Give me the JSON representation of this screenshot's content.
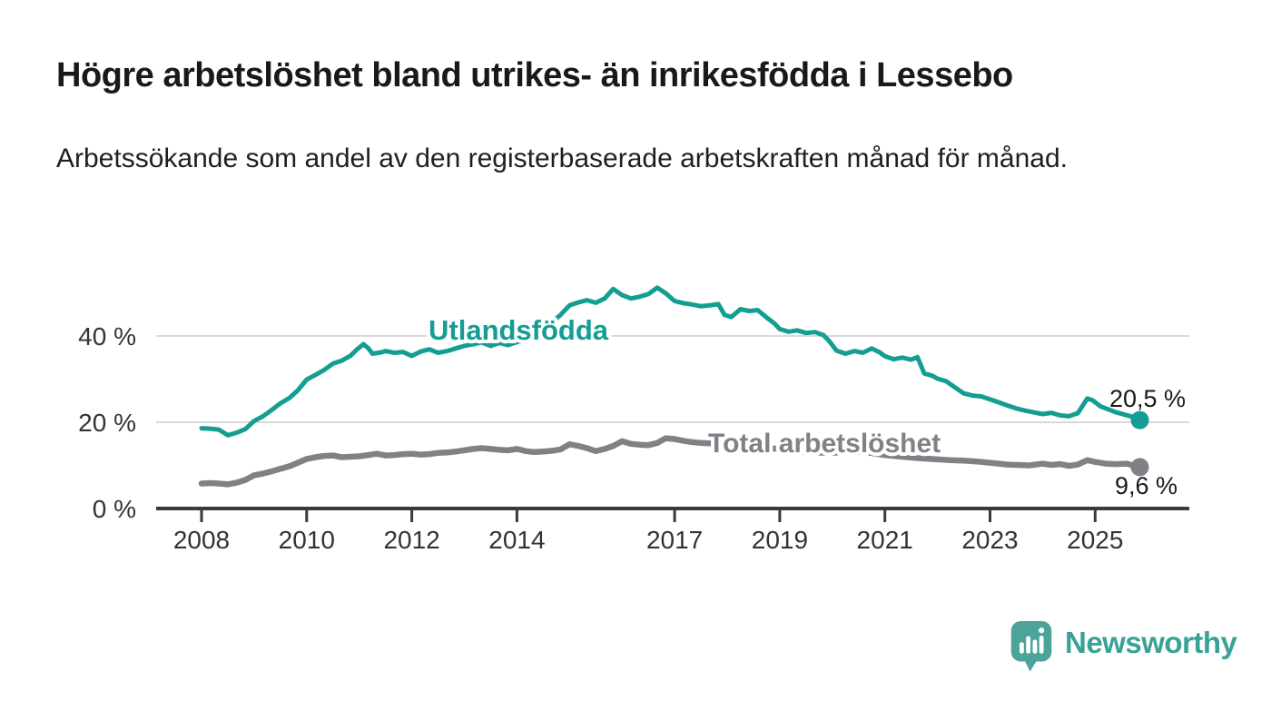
{
  "header": {
    "title": "Högre arbetslöshet bland utrikes- än inrikesfödda i Lessebo",
    "subtitle": "Arbetssökande som andel av den registerbaserade arbetskraften månad för månad."
  },
  "colors": {
    "accent_teal": "#149e93",
    "line_gray": "#808186",
    "axis": "#3a3a3a",
    "grid": "#d9d9d9",
    "text_dark": "#191919",
    "tick_label": "#333333",
    "logo_bubble": "#4ba39a",
    "logo_text": "#38a296",
    "background": "#ffffff"
  },
  "chart_data": {
    "type": "line",
    "title": "Högre arbetslöshet bland utrikes- än inrikesfödda i Lessebo",
    "subtitle": "Arbetssökande som andel av den registerbaserade arbetskraften månad för månad.",
    "xlabel": "",
    "ylabel": "",
    "xlim": [
      2007.1,
      2026.8
    ],
    "ylim": [
      0,
      55
    ],
    "grid": true,
    "legend_position": "inline-labels",
    "y_ticks": [
      {
        "label": "0 %",
        "value": 0
      },
      {
        "label": "20 %",
        "value": 20
      },
      {
        "label": "40 %",
        "value": 40
      }
    ],
    "x_ticks": [
      {
        "label": "2008",
        "value": 2008
      },
      {
        "label": "2010",
        "value": 2010
      },
      {
        "label": "2012",
        "value": 2012
      },
      {
        "label": "2014",
        "value": 2014
      },
      {
        "label": "2017",
        "value": 2017
      },
      {
        "label": "2019",
        "value": 2019
      },
      {
        "label": "2021",
        "value": 2021
      },
      {
        "label": "2023",
        "value": 2023
      },
      {
        "label": "2025",
        "value": 2025
      }
    ],
    "series": [
      {
        "name": "Utlandsfödda",
        "color": "#149e93",
        "line_width": 5,
        "end_label": "20,5 %",
        "end_value": 20.5,
        "points": [
          [
            2008.0,
            18.6
          ],
          [
            2008.17,
            18.5
          ],
          [
            2008.33,
            18.3
          ],
          [
            2008.5,
            17.0
          ],
          [
            2008.67,
            17.6
          ],
          [
            2008.83,
            18.4
          ],
          [
            2009.0,
            20.3
          ],
          [
            2009.17,
            21.4
          ],
          [
            2009.33,
            22.8
          ],
          [
            2009.5,
            24.4
          ],
          [
            2009.67,
            25.6
          ],
          [
            2009.83,
            27.4
          ],
          [
            2010.0,
            29.9
          ],
          [
            2010.17,
            31.0
          ],
          [
            2010.33,
            32.1
          ],
          [
            2010.5,
            33.6
          ],
          [
            2010.67,
            34.3
          ],
          [
            2010.83,
            35.4
          ],
          [
            2010.95,
            36.8
          ],
          [
            2011.08,
            38.1
          ],
          [
            2011.17,
            37.2
          ],
          [
            2011.25,
            35.9
          ],
          [
            2011.42,
            36.2
          ],
          [
            2011.5,
            36.5
          ],
          [
            2011.67,
            36.1
          ],
          [
            2011.83,
            36.3
          ],
          [
            2012.0,
            35.4
          ],
          [
            2012.17,
            36.4
          ],
          [
            2012.33,
            36.9
          ],
          [
            2012.5,
            36.1
          ],
          [
            2012.67,
            36.5
          ],
          [
            2012.83,
            37.1
          ],
          [
            2013.0,
            37.7
          ],
          [
            2013.17,
            38.1
          ],
          [
            2013.33,
            38.5
          ],
          [
            2013.5,
            37.7
          ],
          [
            2013.67,
            38.4
          ],
          [
            2013.83,
            37.9
          ],
          [
            2014.0,
            38.6
          ],
          [
            2014.17,
            39.0
          ],
          [
            2014.33,
            39.8
          ],
          [
            2014.5,
            42.1
          ],
          [
            2014.67,
            43.2
          ],
          [
            2014.83,
            44.9
          ],
          [
            2015.0,
            47.1
          ],
          [
            2015.17,
            47.8
          ],
          [
            2015.33,
            48.3
          ],
          [
            2015.5,
            47.7
          ],
          [
            2015.67,
            48.7
          ],
          [
            2015.83,
            50.9
          ],
          [
            2016.0,
            49.5
          ],
          [
            2016.17,
            48.7
          ],
          [
            2016.33,
            49.1
          ],
          [
            2016.5,
            49.7
          ],
          [
            2016.67,
            51.2
          ],
          [
            2016.83,
            49.9
          ],
          [
            2017.0,
            48.1
          ],
          [
            2017.17,
            47.6
          ],
          [
            2017.33,
            47.3
          ],
          [
            2017.5,
            46.9
          ],
          [
            2017.67,
            47.1
          ],
          [
            2017.83,
            47.4
          ],
          [
            2017.95,
            44.9
          ],
          [
            2018.08,
            44.4
          ],
          [
            2018.25,
            46.2
          ],
          [
            2018.42,
            45.8
          ],
          [
            2018.58,
            46.0
          ],
          [
            2018.75,
            44.3
          ],
          [
            2018.9,
            42.9
          ],
          [
            2019.0,
            41.6
          ],
          [
            2019.17,
            41.0
          ],
          [
            2019.33,
            41.3
          ],
          [
            2019.5,
            40.7
          ],
          [
            2019.67,
            40.9
          ],
          [
            2019.83,
            40.2
          ],
          [
            2019.95,
            38.7
          ],
          [
            2020.08,
            36.6
          ],
          [
            2020.25,
            35.9
          ],
          [
            2020.42,
            36.5
          ],
          [
            2020.58,
            36.1
          ],
          [
            2020.75,
            37.1
          ],
          [
            2020.9,
            36.2
          ],
          [
            2021.0,
            35.3
          ],
          [
            2021.17,
            34.6
          ],
          [
            2021.33,
            35.0
          ],
          [
            2021.5,
            34.5
          ],
          [
            2021.62,
            35.1
          ],
          [
            2021.75,
            31.3
          ],
          [
            2021.9,
            30.8
          ],
          [
            2022.0,
            30.1
          ],
          [
            2022.17,
            29.5
          ],
          [
            2022.33,
            28.1
          ],
          [
            2022.5,
            26.7
          ],
          [
            2022.67,
            26.2
          ],
          [
            2022.83,
            26.0
          ],
          [
            2023.0,
            25.3
          ],
          [
            2023.17,
            24.6
          ],
          [
            2023.33,
            23.9
          ],
          [
            2023.5,
            23.2
          ],
          [
            2023.67,
            22.7
          ],
          [
            2023.83,
            22.3
          ],
          [
            2024.0,
            21.9
          ],
          [
            2024.17,
            22.2
          ],
          [
            2024.33,
            21.6
          ],
          [
            2024.5,
            21.4
          ],
          [
            2024.67,
            22.1
          ],
          [
            2024.85,
            25.5
          ],
          [
            2024.95,
            25.1
          ],
          [
            2025.1,
            23.7
          ],
          [
            2025.25,
            23.0
          ],
          [
            2025.4,
            22.3
          ],
          [
            2025.55,
            21.8
          ],
          [
            2025.7,
            21.3
          ],
          [
            2025.85,
            20.5
          ]
        ]
      },
      {
        "name": "Total arbetslöshet",
        "color": "#808186",
        "line_width": 6.5,
        "end_label": "9,6 %",
        "end_value": 9.6,
        "points": [
          [
            2008.0,
            5.8
          ],
          [
            2008.17,
            5.9
          ],
          [
            2008.33,
            5.8
          ],
          [
            2008.5,
            5.6
          ],
          [
            2008.67,
            6.0
          ],
          [
            2008.83,
            6.6
          ],
          [
            2009.0,
            7.7
          ],
          [
            2009.17,
            8.1
          ],
          [
            2009.33,
            8.6
          ],
          [
            2009.5,
            9.2
          ],
          [
            2009.67,
            9.8
          ],
          [
            2009.83,
            10.6
          ],
          [
            2010.0,
            11.5
          ],
          [
            2010.17,
            11.9
          ],
          [
            2010.33,
            12.2
          ],
          [
            2010.5,
            12.3
          ],
          [
            2010.67,
            11.9
          ],
          [
            2010.83,
            12.0
          ],
          [
            2011.0,
            12.1
          ],
          [
            2011.17,
            12.4
          ],
          [
            2011.33,
            12.7
          ],
          [
            2011.5,
            12.3
          ],
          [
            2011.67,
            12.4
          ],
          [
            2011.83,
            12.6
          ],
          [
            2012.0,
            12.7
          ],
          [
            2012.17,
            12.5
          ],
          [
            2012.33,
            12.6
          ],
          [
            2012.5,
            12.9
          ],
          [
            2012.67,
            13.0
          ],
          [
            2012.83,
            13.2
          ],
          [
            2013.0,
            13.5
          ],
          [
            2013.17,
            13.8
          ],
          [
            2013.33,
            14.0
          ],
          [
            2013.5,
            13.8
          ],
          [
            2013.67,
            13.6
          ],
          [
            2013.83,
            13.5
          ],
          [
            2014.0,
            13.8
          ],
          [
            2014.17,
            13.3
          ],
          [
            2014.33,
            13.1
          ],
          [
            2014.5,
            13.2
          ],
          [
            2014.67,
            13.4
          ],
          [
            2014.83,
            13.7
          ],
          [
            2015.0,
            14.9
          ],
          [
            2015.17,
            14.5
          ],
          [
            2015.33,
            14.0
          ],
          [
            2015.5,
            13.3
          ],
          [
            2015.67,
            13.8
          ],
          [
            2015.83,
            14.5
          ],
          [
            2016.0,
            15.6
          ],
          [
            2016.17,
            15.0
          ],
          [
            2016.33,
            14.8
          ],
          [
            2016.5,
            14.7
          ],
          [
            2016.67,
            15.2
          ],
          [
            2016.83,
            16.3
          ],
          [
            2017.0,
            16.1
          ],
          [
            2017.17,
            15.7
          ],
          [
            2017.33,
            15.4
          ],
          [
            2017.5,
            15.2
          ],
          [
            2017.67,
            15.1
          ],
          [
            2017.83,
            15.2
          ],
          [
            2018.0,
            14.8
          ],
          [
            2018.33,
            14.4
          ],
          [
            2018.67,
            14.1
          ],
          [
            2019.0,
            13.8
          ],
          [
            2019.33,
            13.3
          ],
          [
            2019.67,
            13.0
          ],
          [
            2020.0,
            12.9
          ],
          [
            2020.33,
            13.2
          ],
          [
            2020.67,
            13.0
          ],
          [
            2021.0,
            12.4
          ],
          [
            2021.33,
            12.0
          ],
          [
            2021.6,
            11.7
          ],
          [
            2021.75,
            11.6
          ],
          [
            2022.0,
            11.4
          ],
          [
            2022.25,
            11.2
          ],
          [
            2022.5,
            11.1
          ],
          [
            2022.75,
            10.9
          ],
          [
            2023.0,
            10.6
          ],
          [
            2023.17,
            10.4
          ],
          [
            2023.33,
            10.2
          ],
          [
            2023.5,
            10.1
          ],
          [
            2023.75,
            10.0
          ],
          [
            2024.0,
            10.4
          ],
          [
            2024.17,
            10.1
          ],
          [
            2024.33,
            10.3
          ],
          [
            2024.5,
            9.9
          ],
          [
            2024.67,
            10.2
          ],
          [
            2024.85,
            11.2
          ],
          [
            2025.0,
            10.8
          ],
          [
            2025.2,
            10.4
          ],
          [
            2025.4,
            10.3
          ],
          [
            2025.6,
            10.4
          ],
          [
            2025.85,
            9.6
          ]
        ]
      }
    ]
  },
  "footer": {
    "brand": "Newsworthy"
  }
}
